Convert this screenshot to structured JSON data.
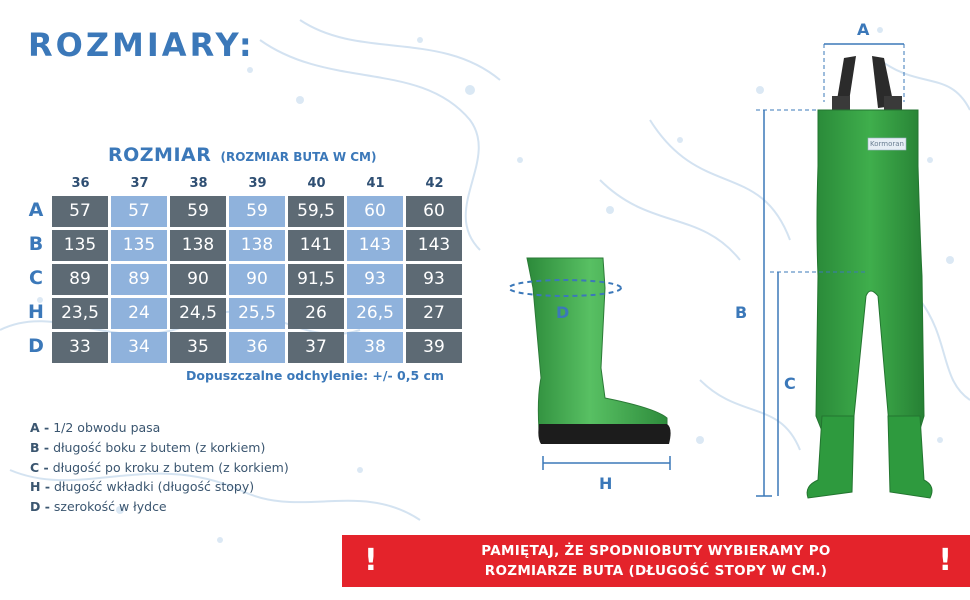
{
  "title": "ROZMIARY:",
  "table": {
    "heading": "ROZMIAR",
    "subheading": "(ROZMIAR BUTA W CM)",
    "sizes": [
      "36",
      "37",
      "38",
      "39",
      "40",
      "41",
      "42"
    ],
    "rows": [
      {
        "key": "A",
        "values": [
          "57",
          "57",
          "59",
          "59",
          "59,5",
          "60",
          "60"
        ]
      },
      {
        "key": "B",
        "values": [
          "135",
          "135",
          "138",
          "138",
          "141",
          "143",
          "143"
        ]
      },
      {
        "key": "C",
        "values": [
          "89",
          "89",
          "90",
          "90",
          "91,5",
          "93",
          "93"
        ]
      },
      {
        "key": "H",
        "values": [
          "23,5",
          "24",
          "24,5",
          "25,5",
          "26",
          "26,5",
          "27"
        ]
      },
      {
        "key": "D",
        "values": [
          "33",
          "34",
          "35",
          "36",
          "37",
          "38",
          "39"
        ]
      }
    ],
    "tolerance": "Dopuszczalne odchylenie: +/- 0,5 cm"
  },
  "legend": [
    {
      "key": "A -",
      "text": "1/2 obwodu pasa"
    },
    {
      "key": "B -",
      "text": "długość boku z butem (z korkiem)"
    },
    {
      "key": "C -",
      "text": "długość po kroku z butem (z korkiem)"
    },
    {
      "key": "H -",
      "text": "długość wkładki (długość stopy)"
    },
    {
      "key": "D -",
      "text": "szerokość w łydce"
    }
  ],
  "figures": {
    "boot_labels": {
      "d": "D",
      "h": "H"
    },
    "waders_labels": {
      "a": "A",
      "b": "B",
      "c": "C"
    },
    "brand_tag": "Kormoran"
  },
  "warning": {
    "line1": "PAMIĘTAJ, ŻE SPODNIOBUTY WYBIERAMY PO",
    "line2": "ROZMIARZE BUTA (DŁUGOŚĆ STOPY W CM.)",
    "bang_left": "!",
    "bang_right": "!"
  },
  "colors": {
    "accent_blue": "#3b78b9",
    "cell_dark": "#5d6a74",
    "cell_light": "#8fb2dc",
    "warning_red": "#e4232b",
    "rubber_green": "#3aa548"
  }
}
